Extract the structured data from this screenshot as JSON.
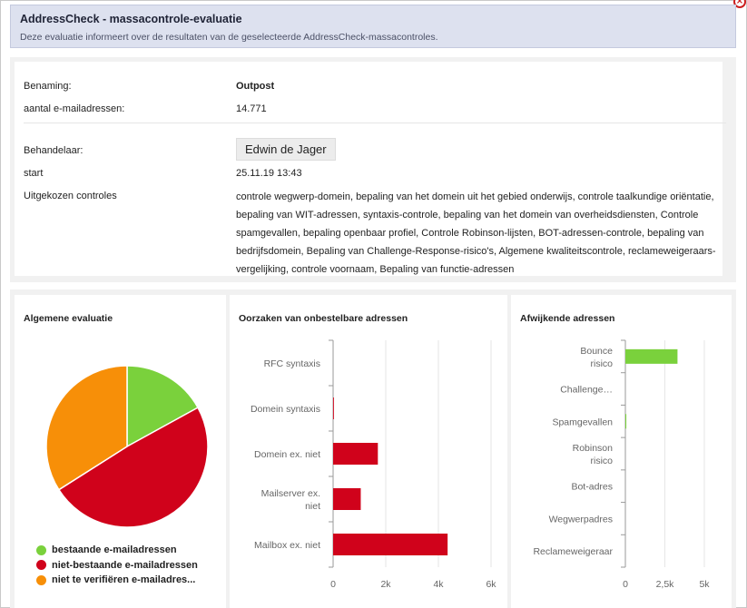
{
  "header": {
    "title": "AddressCheck - massacontrole-evaluatie",
    "subtitle": "Deze evaluatie informeert over de resultaten van de geselecteerde AddressCheck-massacontroles."
  },
  "info": {
    "benaming_label": "Benaming:",
    "benaming_value": "Outpost",
    "aantal_label": "aantal e-mailadressen:",
    "aantal_value": "14.771",
    "behandelaar_label": "Behandelaar:",
    "behandelaar_value": "Edwin de Jager",
    "start_label": "start",
    "start_value": "25.11.19 13:43",
    "controles_label": "Uitgekozen controles",
    "controles_value": "controle wegwerp-domein, bepaling van het domein uit het gebied onderwijs, controle taalkundige oriëntatie, bepaling van WIT-adressen, syntaxis-controle, bepaling van het domein van overheidsdiensten, Controle spamgevallen, bepaling openbaar profiel, Controle Robinson-lijsten, BOT-adressen-controle, bepaling van bedrijfsdomein, Bepaling van Challenge-Response-risico's, Algemene kwaliteitscontrole, reclameweigeraars-vergelijking, controle voornaam, Bepaling van functie-adressen"
  },
  "chart_data": [
    {
      "type": "pie",
      "title": "Algemene evaluatie",
      "categories": [
        "bestaande e-mailadressen",
        "niet-bestaande e-mailadressen",
        "niet te verifiëren e-mailadressen"
      ],
      "legend_labels": [
        "bestaande e-mailadressen",
        "niet-bestaande e-mailadressen",
        "niet te verifiëren e-mailadres..."
      ],
      "values": [
        17,
        49,
        34
      ],
      "colors": [
        "#7ad13c",
        "#d0021b",
        "#f78f08"
      ],
      "legend": "bottom"
    },
    {
      "type": "bar",
      "orientation": "horizontal",
      "title": "Oorzaken van onbestelbare adressen",
      "categories": [
        "RFC syntaxis",
        "Domein syntaxis",
        "Domein ex. niet",
        "Mailserver ex. niet",
        "Mailbox ex. niet"
      ],
      "category_lines": [
        [
          "RFC syntaxis"
        ],
        [
          "Domein syntaxis"
        ],
        [
          "Domein ex. niet"
        ],
        [
          "Mailserver ex.",
          "niet"
        ],
        [
          "Mailbox ex. niet"
        ]
      ],
      "values": [
        0,
        30,
        1700,
        1050,
        4350
      ],
      "xlim": [
        0,
        6000
      ],
      "xticks": [
        0,
        2000,
        4000,
        6000
      ],
      "xtick_labels": [
        "0",
        "2k",
        "4k",
        "6k"
      ],
      "color": "#d0021b",
      "grid": true
    },
    {
      "type": "bar",
      "orientation": "horizontal",
      "title": "Afwijkende adressen",
      "categories": [
        "Bounce risico",
        "Challenge...",
        "Spamgevallen",
        "Robinson risico",
        "Bot-adres",
        "Wegwerpadres",
        "Reclameweigeraar"
      ],
      "category_lines": [
        [
          "Bounce",
          "risico"
        ],
        [
          "Challenge…"
        ],
        [
          "Spamgevallen"
        ],
        [
          "Robinson",
          "risico"
        ],
        [
          "Bot-adres"
        ],
        [
          "Wegwerpadres"
        ],
        [
          "Reclameweigeraar"
        ]
      ],
      "values": [
        3300,
        0,
        60,
        0,
        0,
        0,
        0
      ],
      "xlim": [
        0,
        5000
      ],
      "xticks": [
        0,
        2500,
        5000
      ],
      "xtick_labels": [
        "0",
        "2,5k",
        "5k"
      ],
      "color": "#7ad13c",
      "grid": true
    }
  ]
}
